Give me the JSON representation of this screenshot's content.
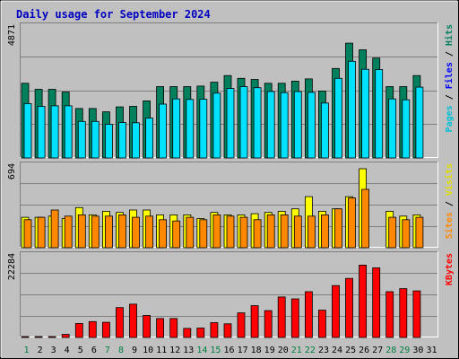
{
  "chart_data": {
    "type": "bar",
    "title": "Daily usage for September 2024",
    "categories": [
      "1",
      "2",
      "3",
      "4",
      "5",
      "6",
      "7",
      "8",
      "9",
      "10",
      "11",
      "12",
      "13",
      "14",
      "15",
      "16",
      "17",
      "18",
      "19",
      "20",
      "21",
      "22",
      "23",
      "24",
      "25",
      "26",
      "27",
      "28",
      "29",
      "30",
      "31"
    ],
    "weekend_days": [
      "1",
      "7",
      "8",
      "14",
      "15",
      "21",
      "22",
      "28",
      "29"
    ],
    "panels": [
      {
        "id": "hits-files",
        "ymax": 4871,
        "ymax_label": "4871",
        "series": [
          {
            "name": "Hits",
            "color": "#00805c",
            "values": [
              2720,
              2500,
              2500,
              2400,
              1800,
              1800,
              1680,
              1860,
              1880,
              2080,
              2600,
              2600,
              2600,
              2620,
              2760,
              3000,
              2900,
              2860,
              2720,
              2720,
              2800,
              2880,
              2440,
              3260,
              4180,
              3940,
              3640,
              2600,
              2600,
              3000,
              0
            ]
          },
          {
            "name": "Files",
            "color": "#00e0ff",
            "values": [
              1980,
              1880,
              1900,
              1900,
              1330,
              1330,
              1230,
              1290,
              1280,
              1450,
              1960,
              2150,
              2130,
              2140,
              2360,
              2530,
              2600,
              2560,
              2420,
              2380,
              2420,
              2390,
              2000,
              2900,
              3520,
              3230,
              3220,
              2150,
              2120,
              2580,
              0
            ]
          }
        ],
        "legend": [
          {
            "text": "Pages",
            "color": "#00c0d8"
          },
          {
            "text": "Files",
            "color": "#0000ff"
          },
          {
            "text": "Hits",
            "color": "#008060"
          }
        ]
      },
      {
        "id": "visits-sites",
        "ymax": 694,
        "ymax_label": "694",
        "series": [
          {
            "name": "Visits",
            "color": "#ffff00",
            "values": [
              250,
              250,
              260,
              240,
              330,
              270,
              300,
              290,
              310,
              310,
              270,
              270,
              270,
              240,
              290,
              270,
              270,
              280,
              290,
              300,
              320,
              420,
              300,
              320,
              420,
              650,
              0,
              300,
              260,
              270,
              0
            ]
          },
          {
            "name": "Sites",
            "color": "#ff8800",
            "values": [
              230,
              250,
              310,
              260,
              270,
              260,
              260,
              270,
              250,
              260,
              230,
              220,
              250,
              230,
              270,
              260,
              250,
              230,
              270,
              270,
              260,
              260,
              270,
              320,
              410,
              480,
              0,
              250,
              230,
              250,
              0
            ]
          }
        ],
        "legend": [
          {
            "text": "Sites",
            "color": "#ff8800"
          },
          {
            "text": "/",
            "color": "#000000"
          },
          {
            "text": "Visits",
            "color": "#e0e000"
          }
        ]
      },
      {
        "id": "kbytes",
        "ymax": 22284,
        "ymax_label": "22284",
        "series": [
          {
            "name": "KBytes",
            "color": "#ff0000",
            "values": [
              120,
              120,
              120,
              800,
              3700,
              4200,
              4000,
              7900,
              8800,
              5800,
              5000,
              5000,
              2400,
              2500,
              3900,
              3600,
              6500,
              8400,
              7100,
              10700,
              10200,
              12100,
              7200,
              13700,
              15600,
              19100,
              18400,
              12100,
              12900,
              12300,
              0
            ]
          }
        ],
        "legend": [
          {
            "text": "KBytes",
            "color": "#ff0000"
          }
        ]
      }
    ]
  }
}
